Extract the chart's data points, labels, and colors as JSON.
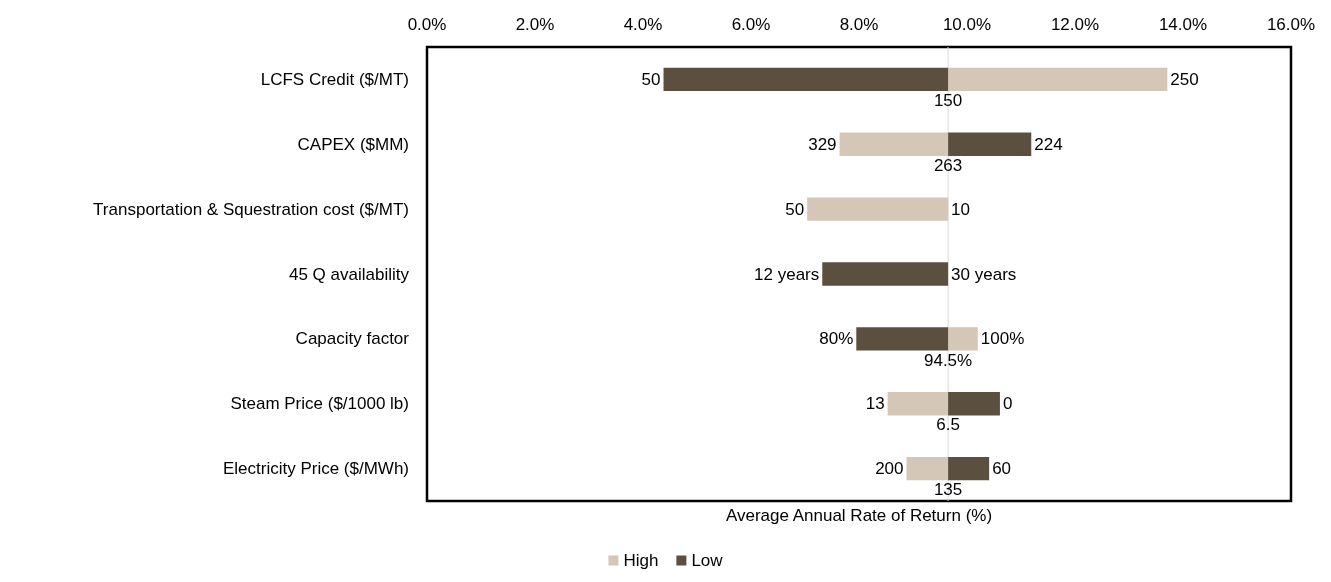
{
  "chart_data": {
    "type": "bar",
    "orientation": "horizontal",
    "xlabel": "Average Annual Rate of Return (%)",
    "categories": [
      "LCFS Credit ($/MT)",
      "CAPEX ($MM)",
      "Transportation & Squestration cost ($/MT)",
      "45 Q availability",
      "Capacity factor",
      "Steam Price ($/1000 lb)",
      "Electricity Price ($/MWh)"
    ],
    "series": [
      {
        "name": "High",
        "color": "#d5c7b7",
        "base": [
          9.65,
          9.65,
          9.65,
          null,
          9.65,
          9.65,
          9.65
        ],
        "values": [
          4.06,
          -2.01,
          -2.61,
          null,
          0.55,
          -1.12,
          -0.77
        ]
      },
      {
        "name": "Low",
        "color": "#5b5040",
        "base": [
          9.65,
          9.65,
          null,
          9.65,
          9.65,
          9.65,
          9.65
        ],
        "values": [
          -5.27,
          1.54,
          null,
          -2.33,
          -1.7,
          0.96,
          0.76
        ]
      }
    ],
    "xlim": [
      0,
      16
    ],
    "xticks": [
      {
        "value": 0,
        "label": "0.0%"
      },
      {
        "value": 2,
        "label": "2.0%"
      },
      {
        "value": 4,
        "label": "4.0%"
      },
      {
        "value": 6,
        "label": "6.0%"
      },
      {
        "value": 8,
        "label": "8.0%"
      },
      {
        "value": 10,
        "label": "10.0%"
      },
      {
        "value": 12,
        "label": "12.0%"
      },
      {
        "value": 14,
        "label": "14.0%"
      },
      {
        "value": 16,
        "label": "16.0%"
      }
    ],
    "ref_lines": [
      {
        "axis": "x",
        "value": 9.65,
        "color": "#d9d9d9"
      }
    ],
    "annotations": [
      {
        "text": "250",
        "x": 13.71,
        "y": "LCFS Credit ($/MT)"
      },
      {
        "text": "50",
        "x": 4.38,
        "y": "LCFS Credit ($/MT)"
      },
      {
        "text": "150",
        "x": 9.65,
        "y": "LCFS Credit ($/MT)"
      },
      {
        "text": "329",
        "x": 7.64,
        "y": "CAPEX ($MM)"
      },
      {
        "text": "224",
        "x": 11.19,
        "y": "CAPEX ($MM)"
      },
      {
        "text": "263",
        "x": 9.65,
        "y": "CAPEX ($MM)"
      },
      {
        "text": "50",
        "x": 7.04,
        "y": "Transportation & Squestration cost ($/MT)"
      },
      {
        "text": "10",
        "x": 9.65,
        "y": "Transportation & Squestration cost ($/MT)"
      },
      {
        "text": "12 years",
        "x": 7.32,
        "y": "45 Q availability"
      },
      {
        "text": "30 years",
        "x": 9.65,
        "y": "45 Q availability"
      },
      {
        "text": "80%",
        "x": 7.95,
        "y": "Capacity factor"
      },
      {
        "text": "100%",
        "x": 10.2,
        "y": "Capacity factor"
      },
      {
        "text": "94.5%",
        "x": 9.65,
        "y": "Capacity factor"
      },
      {
        "text": "13",
        "x": 8.53,
        "y": "Steam Price ($/1000 lb)"
      },
      {
        "text": "0",
        "x": 10.61,
        "y": "Steam Price ($/1000 lb)"
      },
      {
        "text": "6.5",
        "x": 9.65,
        "y": "Steam Price ($/1000 lb)"
      },
      {
        "text": "200",
        "x": 8.88,
        "y": "Electricity Price ($/MWh)"
      },
      {
        "text": "60",
        "x": 10.41,
        "y": "Electricity Price ($/MWh)"
      },
      {
        "text": "135",
        "x": 9.65,
        "y": "Electricity Price ($/MWh)"
      }
    ],
    "legend": "bottom"
  }
}
